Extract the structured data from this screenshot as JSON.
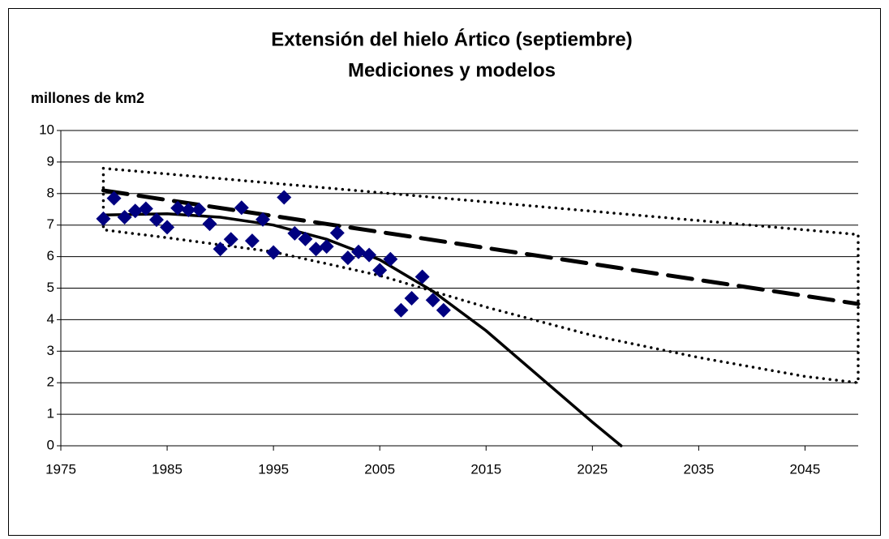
{
  "chart_data": {
    "type": "scatter",
    "title": "Extensión del hielo Ártico (septiembre)",
    "subtitle": "Mediciones y modelos",
    "y_label": "millones de km2",
    "xlim": [
      1975,
      2050
    ],
    "xticks": [
      1975,
      1985,
      1995,
      2005,
      2015,
      2025,
      2035,
      2045
    ],
    "ylim": [
      0,
      10
    ],
    "yticks": [
      0,
      1,
      2,
      3,
      4,
      5,
      6,
      7,
      8,
      9,
      10
    ],
    "grid": true,
    "series": [
      {
        "style": "markers",
        "color": "#000080",
        "x": [
          1979,
          1980,
          1981,
          1982,
          1983,
          1984,
          1985,
          1986,
          1987,
          1988,
          1989,
          1990,
          1991,
          1992,
          1993,
          1994,
          1995,
          1996,
          1997,
          1998,
          1999,
          2000,
          2001,
          2002,
          2003,
          2004,
          2005,
          2006,
          2007,
          2008,
          2009,
          2010,
          2011
        ],
        "values": [
          7.2,
          7.85,
          7.25,
          7.45,
          7.52,
          7.17,
          6.93,
          7.54,
          7.48,
          7.49,
          7.04,
          6.24,
          6.55,
          7.55,
          6.5,
          7.18,
          6.13,
          7.88,
          6.74,
          6.56,
          6.24,
          6.32,
          6.75,
          5.96,
          6.15,
          6.05,
          5.57,
          5.92,
          4.3,
          4.68,
          5.36,
          4.62,
          4.3
        ]
      },
      {
        "style": "solid",
        "color": "#000000",
        "x": [
          1979,
          1985,
          1990,
          1995,
          2000,
          2005,
          2010,
          2015,
          2020,
          2025,
          2027.7
        ],
        "values": [
          7.32,
          7.36,
          7.25,
          7.0,
          6.55,
          5.9,
          4.9,
          3.65,
          2.2,
          0.75,
          0
        ]
      },
      {
        "style": "dashed",
        "color": "#000000",
        "x": [
          1979,
          2050
        ],
        "values": [
          8.1,
          4.5
        ]
      },
      {
        "style": "dotted",
        "color": "#000000",
        "x": [
          1979,
          2050,
          2050,
          2045,
          2035,
          2025,
          2015,
          2005,
          1995,
          1985,
          1979,
          1979
        ],
        "values": [
          8.8,
          6.7,
          2.0,
          2.2,
          2.8,
          3.5,
          4.4,
          5.4,
          6.15,
          6.6,
          6.85,
          8.8
        ]
      }
    ]
  }
}
